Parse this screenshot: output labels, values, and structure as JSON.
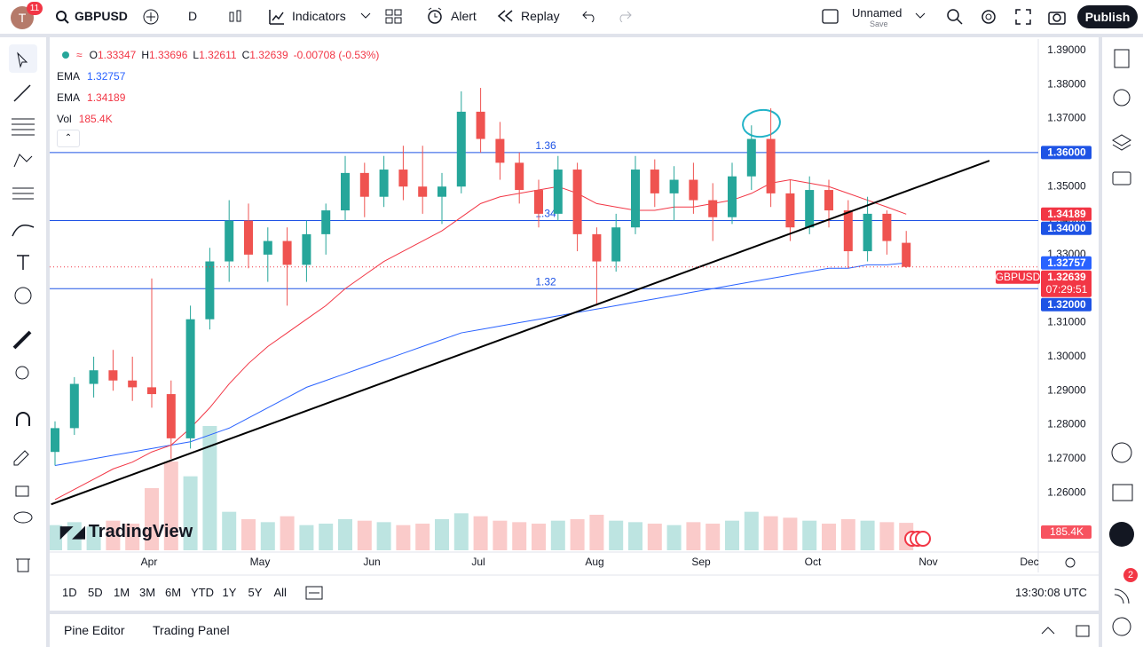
{
  "toolbar": {
    "avatar": "T",
    "notifications": "11",
    "symbol": "GBPUSD",
    "interval": "D",
    "indicators": "Indicators",
    "alert": "Alert",
    "replay": "Replay",
    "layout_name": "Unnamed",
    "save": "Save",
    "publish": "Publish"
  },
  "legend": {
    "ohlc": [
      {
        "key": "O",
        "value": "1.33347"
      },
      {
        "key": "H",
        "value": "1.33696"
      },
      {
        "key": "L",
        "value": "1.32611"
      },
      {
        "key": "C",
        "value": "1.32639"
      }
    ],
    "change": "-0.00708 (-0.53%)",
    "indicators": [
      {
        "name": "EMA",
        "value": "1.32757"
      },
      {
        "name": "EMA",
        "value": "1.34189"
      },
      {
        "name": "Vol",
        "value": "185.4K"
      }
    ]
  },
  "chart_data": {
    "type": "candlestick",
    "ylim": [
      1.2431,
      1.3931
    ],
    "yticks": [
      {
        "value": 1.26,
        "label": "1.26000"
      },
      {
        "value": 1.27,
        "label": "1.27000"
      },
      {
        "value": 1.28,
        "label": "1.28000"
      },
      {
        "value": 1.29,
        "label": "1.29000"
      },
      {
        "value": 1.3,
        "label": "1.30000"
      },
      {
        "value": 1.31,
        "label": "1.31000"
      },
      {
        "value": 1.32,
        "label": "1.32000"
      },
      {
        "value": 1.33,
        "label": "1.33000"
      },
      {
        "value": 1.34,
        "label": "1.34000"
      },
      {
        "value": 1.35,
        "label": "1.35000"
      },
      {
        "value": 1.36,
        "label": "1.36000"
      },
      {
        "value": 1.37,
        "label": "1.37000"
      },
      {
        "value": 1.38,
        "label": "1.38000"
      },
      {
        "value": 1.39,
        "label": "1.39000"
      }
    ],
    "xticks": [
      "Apr",
      "May",
      "Jun",
      "Jul",
      "Aug",
      "Sep",
      "Oct",
      "Nov",
      "Dec"
    ],
    "grid": false,
    "candles": {
      "name": "GBPUSD",
      "up_color": "#26a69a",
      "down_color": "#ef5350",
      "open": [
        1.272,
        1.279,
        1.292,
        1.296,
        1.293,
        1.291,
        1.289,
        1.276,
        1.311,
        1.328,
        1.34,
        1.33,
        1.334,
        1.327,
        1.336,
        1.343,
        1.354,
        1.347,
        1.355,
        1.35,
        1.347,
        1.35,
        1.372,
        1.364,
        1.357,
        1.349,
        1.342,
        1.355,
        1.336,
        1.328,
        1.338,
        1.355,
        1.348,
        1.352,
        1.346,
        1.341,
        1.353,
        1.364,
        1.348,
        1.338,
        1.349,
        1.343,
        1.331,
        1.342,
        1.33347
      ],
      "high": [
        1.281,
        1.294,
        1.3,
        1.302,
        1.3,
        1.323,
        1.293,
        1.315,
        1.332,
        1.346,
        1.345,
        1.338,
        1.338,
        1.34,
        1.345,
        1.359,
        1.357,
        1.359,
        1.362,
        1.362,
        1.354,
        1.378,
        1.379,
        1.369,
        1.36,
        1.352,
        1.359,
        1.357,
        1.338,
        1.342,
        1.359,
        1.358,
        1.356,
        1.357,
        1.351,
        1.357,
        1.368,
        1.373,
        1.352,
        1.353,
        1.352,
        1.346,
        1.347,
        1.343,
        1.33696
      ],
      "low": [
        1.268,
        1.277,
        1.288,
        1.29,
        1.287,
        1.285,
        1.27,
        1.273,
        1.308,
        1.322,
        1.326,
        1.322,
        1.315,
        1.322,
        1.33,
        1.34,
        1.341,
        1.344,
        1.346,
        1.342,
        1.339,
        1.348,
        1.36,
        1.352,
        1.345,
        1.338,
        1.34,
        1.331,
        1.315,
        1.325,
        1.336,
        1.344,
        1.34,
        1.342,
        1.334,
        1.339,
        1.349,
        1.344,
        1.334,
        1.336,
        1.338,
        1.326,
        1.328,
        1.33,
        1.32611
      ],
      "close": [
        1.279,
        1.292,
        1.296,
        1.293,
        1.291,
        1.289,
        1.276,
        1.311,
        1.328,
        1.34,
        1.33,
        1.334,
        1.327,
        1.336,
        1.343,
        1.354,
        1.347,
        1.355,
        1.35,
        1.347,
        1.35,
        1.372,
        1.364,
        1.357,
        1.349,
        1.342,
        1.355,
        1.336,
        1.328,
        1.338,
        1.355,
        1.348,
        1.352,
        1.346,
        1.341,
        1.353,
        1.364,
        1.348,
        1.338,
        1.349,
        1.343,
        1.331,
        1.342,
        1.334,
        1.32639
      ]
    },
    "volume": {
      "name": "Vol",
      "vlim": [
        0,
        900
      ],
      "value_label": "185.4K",
      "values": [
        170,
        190,
        160,
        200,
        180,
        420,
        600,
        500,
        840,
        260,
        210,
        190,
        230,
        170,
        180,
        210,
        200,
        190,
        170,
        180,
        210,
        250,
        230,
        200,
        190,
        180,
        200,
        210,
        240,
        200,
        190,
        180,
        170,
        190,
        180,
        200,
        260,
        230,
        220,
        200,
        180,
        210,
        200,
        190,
        185.4
      ]
    },
    "lines": [
      {
        "name": "EMA",
        "color": "#2962ff",
        "values": [
          1.268,
          1.269,
          1.27,
          1.271,
          1.272,
          1.273,
          1.274,
          1.275,
          1.277,
          1.279,
          1.282,
          1.285,
          1.288,
          1.291,
          1.293,
          1.295,
          1.297,
          1.299,
          1.301,
          1.303,
          1.305,
          1.307,
          1.308,
          1.309,
          1.31,
          1.311,
          1.312,
          1.313,
          1.314,
          1.315,
          1.316,
          1.317,
          1.318,
          1.319,
          1.32,
          1.321,
          1.322,
          1.323,
          1.324,
          1.325,
          1.326,
          1.326,
          1.327,
          1.327,
          1.32757
        ]
      },
      {
        "name": "EMA",
        "color": "#f23645",
        "values": [
          1.258,
          1.261,
          1.264,
          1.267,
          1.269,
          1.272,
          1.274,
          1.279,
          1.285,
          1.292,
          1.298,
          1.303,
          1.307,
          1.311,
          1.315,
          1.32,
          1.324,
          1.328,
          1.331,
          1.334,
          1.337,
          1.341,
          1.345,
          1.347,
          1.348,
          1.349,
          1.35,
          1.348,
          1.345,
          1.344,
          1.343,
          1.343,
          1.344,
          1.344,
          1.345,
          1.346,
          1.348,
          1.351,
          1.352,
          1.351,
          1.35,
          1.348,
          1.346,
          1.344,
          1.34189
        ]
      }
    ],
    "levels": [
      {
        "value": 1.36,
        "label": "1.36"
      },
      {
        "value": 1.34,
        "label": "1.34"
      },
      {
        "value": 1.32,
        "label": "1.32"
      }
    ],
    "trendline": {
      "x": [
        -0.2,
        48.3
      ],
      "y": [
        1.2566,
        1.3576
      ]
    },
    "price_labels": [
      {
        "value": 1.36,
        "label": "1.36000",
        "color": "#1e53e5"
      },
      {
        "value": 1.34189,
        "label": "1.34189",
        "color": "#f23645"
      },
      {
        "value": 1.34,
        "label": "1.34000",
        "color": "#1e53e5"
      },
      {
        "value": 1.32757,
        "label": "1.32757",
        "color": "#2962ff"
      },
      {
        "value": 1.32639,
        "label": "1.32639",
        "color": "#f23645",
        "tag": "GBPUSD",
        "countdown": "07:29:51"
      },
      {
        "value": 1.32,
        "label": "1.32000",
        "color": "#1e53e5"
      }
    ]
  },
  "watermark": "TradingView",
  "timeframes": [
    "1D",
    "5D",
    "1M",
    "3M",
    "6M",
    "YTD",
    "1Y",
    "5Y",
    "All"
  ],
  "clock": "13:30:08 UTC",
  "bottom_panel": {
    "tabs": [
      "Pine Editor",
      "Trading Panel"
    ]
  },
  "sidebar": {
    "alerts_badge": "2"
  }
}
